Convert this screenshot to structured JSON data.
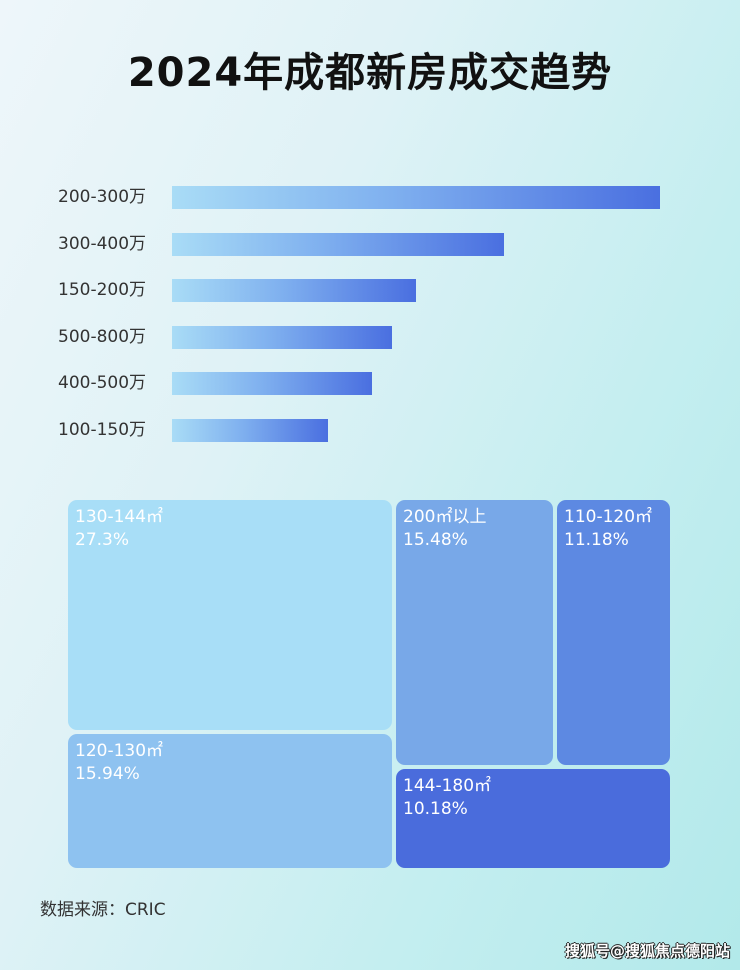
{
  "title": "2024年成都新房成交趋势",
  "chart_data": [
    {
      "type": "bar",
      "orientation": "horizontal",
      "categories": [
        "200-300万",
        "300-400万",
        "150-200万",
        "500-800万",
        "400-500万",
        "100-150万"
      ],
      "values": [
        100,
        68,
        50,
        45,
        41,
        32
      ],
      "value_note": "relative bar lengths, no values printed",
      "bar_gradient": [
        "#a9dcf6",
        "#4a6fe0"
      ]
    },
    {
      "type": "treemap",
      "items": [
        {
          "label": "130-144㎡",
          "value": "27.3%",
          "color": "#a8def7"
        },
        {
          "label": "120-130㎡",
          "value": "15.94%",
          "color": "#8ec2f0"
        },
        {
          "label": "200㎡以上",
          "value": "15.48%",
          "color": "#78a8e8"
        },
        {
          "label": "110-120㎡",
          "value": "11.18%",
          "color": "#5d89e2"
        },
        {
          "label": "144-180㎡",
          "value": "10.18%",
          "color": "#4a6cdc"
        }
      ]
    }
  ],
  "source": "数据来源：CRIC",
  "watermark": "搜狐号@搜狐焦点德阳站"
}
